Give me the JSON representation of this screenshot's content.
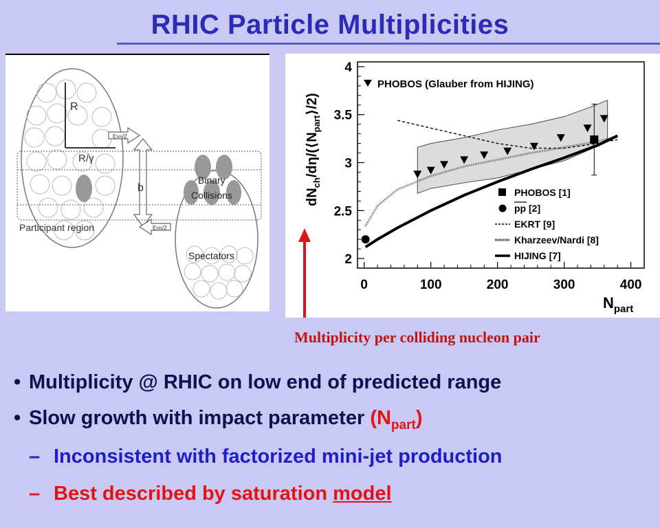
{
  "page": {
    "title": "RHIC Particle Multiplicities"
  },
  "diagram": {
    "label_r": "R",
    "label_r_gamma": "R/γ",
    "label_enn": "E",
    "label_enn_sub": "NN",
    "label_enn_tail": "/2",
    "label_b": "b",
    "label_participant": "Participant region",
    "label_binary_1": "Binary",
    "label_binary_2": "Collisions",
    "label_spectators": "Spectators"
  },
  "chart_data": {
    "type": "line",
    "xlim": [
      -10,
      420
    ],
    "ylim": [
      1.9,
      4.05
    ],
    "x_ticks": [
      "0",
      "100",
      "200",
      "300",
      "400"
    ],
    "y_ticks": [
      "2",
      "2.5",
      "3",
      "3.5",
      "4"
    ],
    "ylabel_parts": [
      "dN",
      "ch",
      "/dη/(⟨N",
      "part",
      "⟩/2)"
    ],
    "xlabel_main": "N",
    "xlabel_sub": "part",
    "legend_top": "PHOBOS (Glauber from HIJING)",
    "legend": [
      {
        "label": "PHOBOS [1]",
        "marker": "square"
      },
      {
        "label": "pp [2]",
        "marker": "circle"
      },
      {
        "label": "EKRT [9]",
        "marker": "dashed"
      },
      {
        "label": "Kharzeev/Nardi [8]",
        "marker": "dotted"
      },
      {
        "label": "HIJING [7]",
        "marker": "solid"
      }
    ],
    "series": [
      {
        "name": "PHOBOS (Glauber from HIJING)",
        "marker": "triangle-down",
        "x": [
          80,
          100,
          120,
          150,
          180,
          215,
          255,
          295,
          335,
          360
        ],
        "y": [
          2.88,
          2.92,
          2.98,
          3.03,
          3.08,
          3.12,
          3.17,
          3.26,
          3.36,
          3.46
        ]
      },
      {
        "name": "PHOBOS [1]",
        "marker": "square",
        "x": [
          345
        ],
        "y": [
          3.24
        ],
        "yerr": [
          0.37
        ]
      },
      {
        "name": "pp [2]",
        "marker": "circle",
        "x": [
          2
        ],
        "y": [
          2.2
        ]
      },
      {
        "name": "EKRT [9]",
        "style": "dashed",
        "x": [
          50,
          100,
          150,
          200,
          250,
          300,
          350,
          380
        ],
        "y": [
          3.44,
          3.36,
          3.28,
          3.2,
          3.15,
          3.15,
          3.2,
          3.24
        ]
      },
      {
        "name": "Kharzeev/Nardi [8]",
        "style": "dotted",
        "x": [
          2,
          20,
          50,
          100,
          150,
          200,
          250,
          300,
          350,
          380
        ],
        "y": [
          2.34,
          2.55,
          2.72,
          2.86,
          2.96,
          3.03,
          3.1,
          3.16,
          3.22,
          3.27
        ]
      },
      {
        "name": "HIJING [7]",
        "style": "solid",
        "x": [
          2,
          20,
          50,
          100,
          150,
          200,
          250,
          300,
          350,
          380
        ],
        "y": [
          2.12,
          2.2,
          2.32,
          2.5,
          2.66,
          2.8,
          2.93,
          3.05,
          3.18,
          3.28
        ]
      }
    ],
    "band": {
      "x": [
        80,
        100,
        150,
        200,
        250,
        300,
        340,
        365,
        365,
        340,
        300,
        250,
        200,
        150,
        100,
        80
      ],
      "y": [
        3.16,
        3.2,
        3.26,
        3.34,
        3.4,
        3.48,
        3.58,
        3.65,
        3.25,
        3.14,
        3.02,
        2.93,
        2.84,
        2.79,
        2.73,
        2.68
      ]
    }
  },
  "caption": "Multiplicity per colliding nucleon pair",
  "bullets": {
    "b1": "Multiplicity @ RHIC on low end of predicted range",
    "b2_text": "Slow growth with impact parameter ",
    "b2_paren_open": "(N",
    "b2_sub": "part",
    "b2_paren_close": ")",
    "dash": "–",
    "s1": "Inconsistent with factorized mini-jet production",
    "s2_text": "Best described by saturation ",
    "s2_link": "model"
  },
  "colors": {
    "background": "#c9c9f3",
    "title": "#2b2bb5",
    "accent_red": "#e01414",
    "accent_blue": "#1e1ec8",
    "bullet_text": "#101050"
  }
}
